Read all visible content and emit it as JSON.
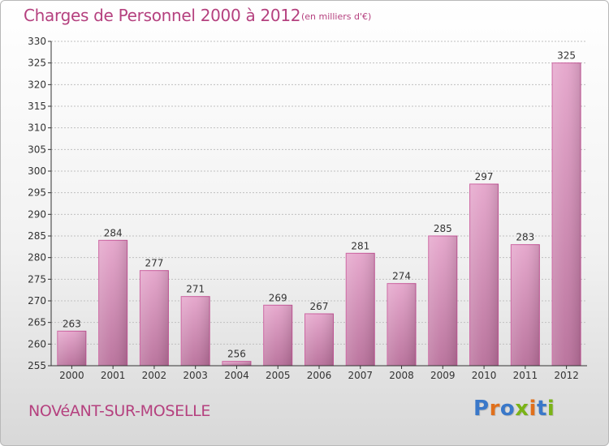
{
  "header": {
    "title": "Charges de Personnel 2000 à 2012",
    "unit": "(en milliers d'€)"
  },
  "footer": {
    "commune": "NOVéANT-SUR-MOSELLE",
    "logo": "Proxiti",
    "logo_colors": [
      "#3a78c9",
      "#e0701c",
      "#3a78c9",
      "#7ab317",
      "#e0701c",
      "#3a78c9",
      "#7ab317"
    ]
  },
  "colors": {
    "bar_top": "#e5a5cb",
    "bar_bottom": "#b86f9a",
    "bar_edge": "#c8589a",
    "axis": "#333333",
    "grid": "#c0c0c0"
  },
  "chart_data": {
    "type": "bar",
    "categories": [
      "2000",
      "2001",
      "2002",
      "2003",
      "2004",
      "2005",
      "2006",
      "2007",
      "2008",
      "2009",
      "2010",
      "2011",
      "2012"
    ],
    "values": [
      263,
      284,
      277,
      271,
      256,
      269,
      267,
      281,
      274,
      285,
      297,
      283,
      325
    ],
    "data_labels": [
      "263",
      "284",
      "277",
      "271",
      "256",
      "269",
      "267",
      "281",
      "274",
      "285",
      "297",
      "283",
      "325"
    ],
    "yticks": [
      "255",
      "260",
      "265",
      "270",
      "275",
      "280",
      "285",
      "290",
      "295",
      "300",
      "305",
      "310",
      "315",
      "320",
      "325",
      "330"
    ],
    "ylim": [
      255,
      330
    ],
    "grid": true,
    "title": "Charges de Personnel 2000 à 2012",
    "xlabel": "",
    "ylabel": ""
  }
}
